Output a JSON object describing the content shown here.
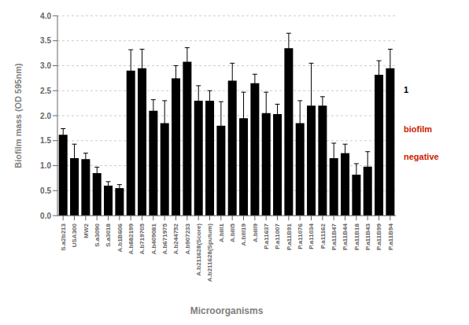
{
  "chart_data": {
    "type": "bar",
    "categories": [
      "S.a2b213",
      "USA300",
      "MW2",
      "S.a3090",
      "S.a3018",
      "A.b1B606",
      "A.b882199",
      "A.b719705",
      "A.b409081",
      "A.b671975",
      "A.b244752",
      "A.b907233",
      "A.b211628(Score)",
      "A.b211628(Sputum)",
      "A.bill1",
      "A.bill5",
      "A.bill19",
      "A.bill9",
      "P.a11637",
      "P.a11007",
      "P.a11B91",
      "P.a11076",
      "P.a11034",
      "P.a11162",
      "P.a11B47",
      "P.a11B44",
      "P.a11B18",
      "P.a11B43",
      "P.a11B99",
      "P.a11B94"
    ],
    "values": [
      1.62,
      1.15,
      1.13,
      0.85,
      0.6,
      0.55,
      2.9,
      2.95,
      2.1,
      1.85,
      2.75,
      3.08,
      2.3,
      2.3,
      1.8,
      2.7,
      1.95,
      2.65,
      2.05,
      2.03,
      3.35,
      1.85,
      2.2,
      2.2,
      1.15,
      1.25,
      0.82,
      0.98,
      2.82,
      2.95
    ],
    "errors": [
      0.12,
      0.28,
      0.12,
      0.12,
      0.08,
      0.07,
      0.42,
      0.38,
      0.22,
      0.45,
      0.25,
      0.28,
      0.3,
      0.2,
      0.48,
      0.35,
      0.52,
      0.18,
      0.42,
      0.2,
      0.3,
      0.45,
      0.85,
      0.18,
      0.3,
      0.18,
      0.22,
      0.3,
      0.28,
      0.38
    ],
    "color": "#000000",
    "xlabel": "Microorganisms",
    "ylabel": "Biofilm mass (OD 595nm)",
    "ylim": [
      0,
      4.0
    ],
    "yticks": [
      {
        "value": 0,
        "label": "0.0"
      },
      0.5,
      {
        "value": 1.0,
        "label": "1.0"
      },
      1.5,
      {
        "value": 2.0,
        "label": "2.0"
      },
      2.5,
      {
        "value": 3.0,
        "label": "3.0"
      },
      3.5,
      {
        "value": 4.0,
        "label": "4.0"
      }
    ],
    "annotations": [
      {
        "text": "1",
        "color": "#000000"
      },
      {
        "text": "biofilm",
        "color": "#cc2200"
      },
      {
        "text": "negative",
        "color": "#cc2200"
      }
    ]
  }
}
